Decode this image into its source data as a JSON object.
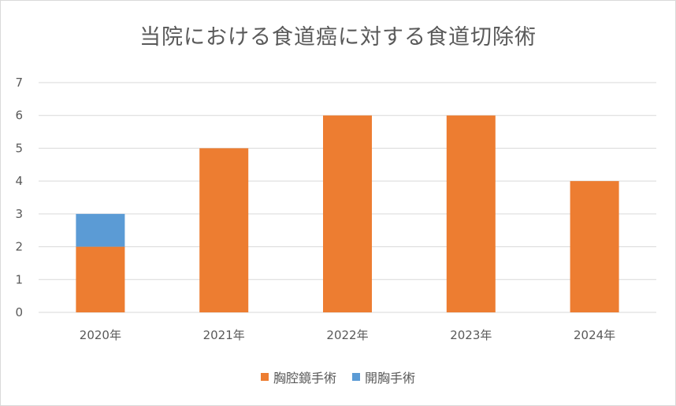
{
  "chart_data": {
    "type": "bar",
    "stacked": true,
    "title": "当院における食道癌に対する食道切除術",
    "categories": [
      "2020年",
      "2021年",
      "2022年",
      "2023年",
      "2024年"
    ],
    "series": [
      {
        "name": "胸腔鏡手術",
        "color": "#ED7D31",
        "values": [
          2,
          5,
          6,
          6,
          4
        ]
      },
      {
        "name": "開胸手術",
        "color": "#5B9BD5",
        "values": [
          1,
          0,
          0,
          0,
          0
        ]
      }
    ],
    "ylim": [
      0,
      7
    ],
    "yticks": [
      0,
      1,
      2,
      3,
      4,
      5,
      6,
      7
    ],
    "grid": true,
    "legend_position": "bottom"
  }
}
